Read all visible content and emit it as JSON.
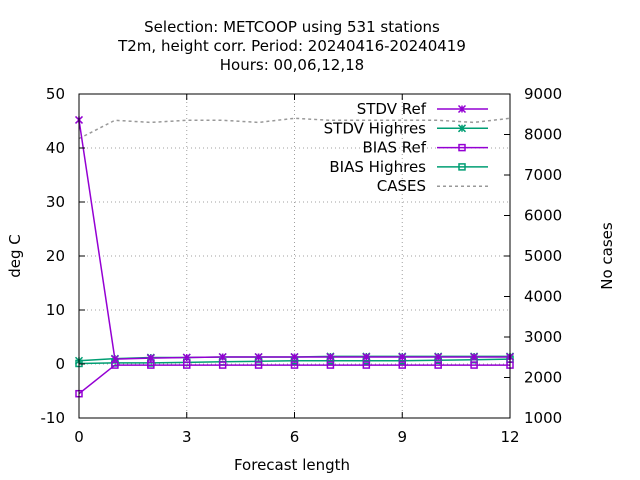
{
  "chart_data": {
    "type": "line",
    "title": [
      "Selection: METCOOP using   531 stations",
      "T2m, height corr.   Period: 20240416-20240419",
      "Hours:  00,06,12,18"
    ],
    "xlabel": "Forecast length",
    "ylabel": "deg C",
    "y2label": "No cases",
    "xlim": [
      0,
      12
    ],
    "ylim": [
      -10,
      50
    ],
    "y2lim": [
      1000,
      9000
    ],
    "xticks": [
      "0",
      "3",
      "6",
      "9",
      "12"
    ],
    "yticks": [
      "-10",
      "0",
      "10",
      "20",
      "30",
      "40",
      "50"
    ],
    "y2ticks": [
      "1000",
      "2000",
      "3000",
      "4000",
      "5000",
      "6000",
      "7000",
      "8000",
      "9000"
    ],
    "grid": true,
    "legend_position": "top-right",
    "x": [
      0,
      1,
      2,
      3,
      4,
      5,
      6,
      7,
      8,
      9,
      10,
      11,
      12
    ],
    "series": [
      {
        "name": "STDV Ref",
        "color": "#9400d3",
        "marker": "x-star",
        "axis": "y1",
        "values": [
          45.2,
          0.9,
          1.1,
          1.2,
          1.3,
          1.3,
          1.3,
          1.3,
          1.3,
          1.3,
          1.3,
          1.3,
          1.3
        ]
      },
      {
        "name": "STDV Highres",
        "color": "#009e73",
        "marker": "x-star",
        "axis": "y1",
        "values": [
          0.6,
          1.0,
          1.2,
          1.2,
          1.3,
          1.3,
          1.3,
          1.4,
          1.4,
          1.4,
          1.4,
          1.4,
          1.4
        ]
      },
      {
        "name": "BIAS Ref",
        "color": "#9400d3",
        "marker": "square",
        "axis": "y1",
        "values": [
          -5.5,
          -0.2,
          -0.2,
          -0.2,
          -0.2,
          -0.2,
          -0.2,
          -0.2,
          -0.2,
          -0.2,
          -0.2,
          -0.2,
          -0.2
        ]
      },
      {
        "name": "BIAS Highres",
        "color": "#009e73",
        "marker": "square",
        "axis": "y1",
        "values": [
          0.1,
          0.2,
          0.2,
          0.3,
          0.4,
          0.5,
          0.6,
          0.6,
          0.6,
          0.6,
          0.7,
          0.8,
          0.9
        ]
      },
      {
        "name": "CASES",
        "color": "#999999",
        "marker": "none",
        "dash": true,
        "axis": "y2",
        "values": [
          7900,
          8350,
          8300,
          8350,
          8350,
          8300,
          8400,
          8350,
          8350,
          8350,
          8350,
          8300,
          8400
        ]
      }
    ]
  }
}
